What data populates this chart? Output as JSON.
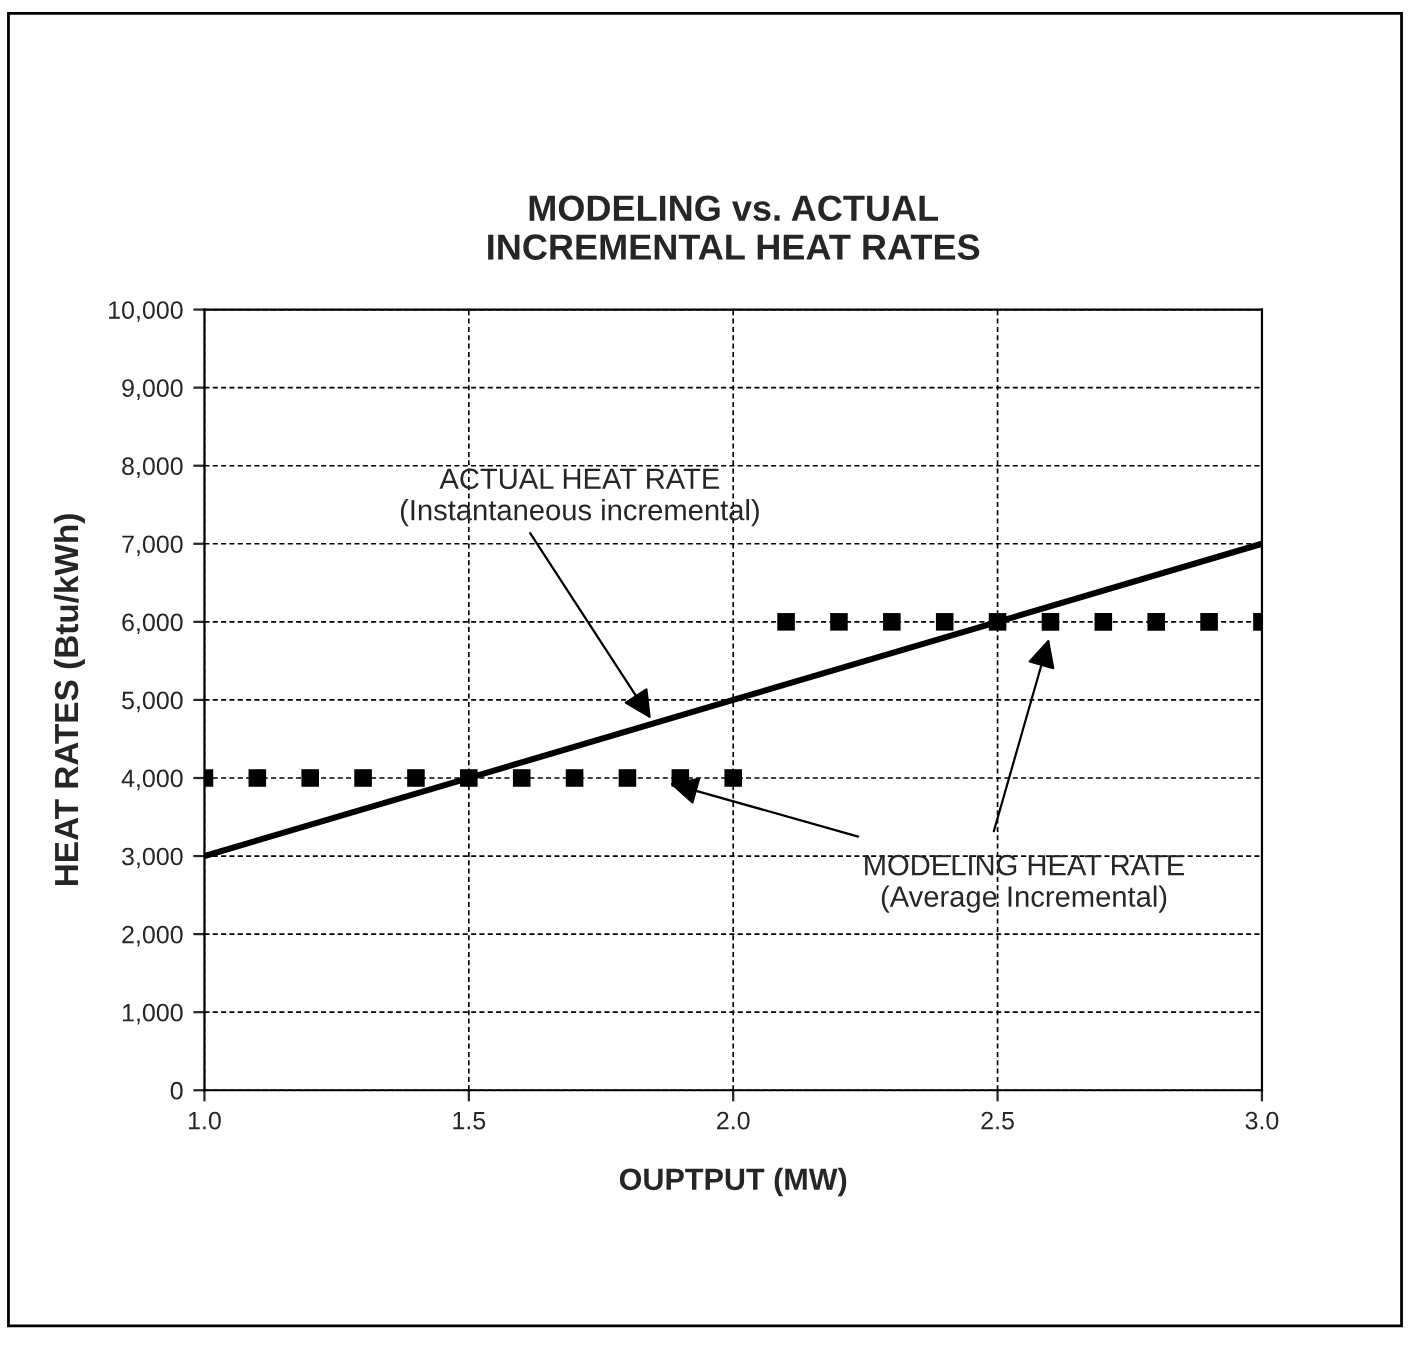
{
  "chart_data": {
    "type": "line",
    "title": "MODELING vs. ACTUAL\nINCREMENTAL HEAT RATES",
    "xlabel": "OUPTPUT (MW)",
    "ylabel": "HEAT RATES (Btu/kWh)",
    "series": [
      {
        "color": "#000000",
        "x": [
          1.0,
          2.0,
          3.0
        ],
        "values": [
          3000,
          5000,
          7000
        ],
        "marker": "none",
        "line_style": "solid"
      },
      {
        "type": "scatter",
        "color": "#000000",
        "marker": "square",
        "x": [
          1.0,
          1.1,
          1.2,
          1.3,
          1.4,
          1.5,
          1.6,
          1.7,
          1.8,
          1.9,
          2.0,
          2.1,
          2.2,
          2.3,
          2.4,
          2.5,
          2.6,
          2.7,
          2.8,
          2.9,
          3.0
        ],
        "values": [
          4000,
          4000,
          4000,
          4000,
          4000,
          4000,
          4000,
          4000,
          4000,
          4000,
          4000,
          6000,
          6000,
          6000,
          6000,
          6000,
          6000,
          6000,
          6000,
          6000,
          6000
        ]
      }
    ],
    "annotations": [
      {
        "text": "ACTUAL HEAT RATE\n(Instantaneous incremental)",
        "x": 1.85,
        "y": 4700
      },
      {
        "text": "MODELING HEAT RATE\n(Average Incremental)",
        "x": 1.87,
        "y": 3950
      }
    ],
    "xlim": [
      1.0,
      3.0
    ],
    "xticks": [
      {
        "value": 1.0,
        "label": "1.0"
      },
      {
        "value": 1.5,
        "label": "1.5"
      },
      {
        "value": 2.0,
        "label": "2.0"
      },
      {
        "value": 2.5,
        "label": "2.5"
      },
      {
        "value": 3.0,
        "label": "3.0"
      }
    ],
    "ylim": [
      0,
      10000
    ],
    "yticks": [
      {
        "value": 0,
        "label": "0"
      },
      {
        "value": 1000,
        "label": "1,000"
      },
      {
        "value": 2000,
        "label": "2,000"
      },
      {
        "value": 3000,
        "label": "3,000"
      },
      {
        "value": 4000,
        "label": "4,000"
      },
      {
        "value": 5000,
        "label": "5,000"
      },
      {
        "value": 6000,
        "label": "6,000"
      },
      {
        "value": 7000,
        "label": "7,000"
      },
      {
        "value": 8000,
        "label": "8,000"
      },
      {
        "value": 9000,
        "label": "9,000"
      },
      {
        "value": 10000,
        "label": "10,000"
      }
    ],
    "grid": true
  }
}
